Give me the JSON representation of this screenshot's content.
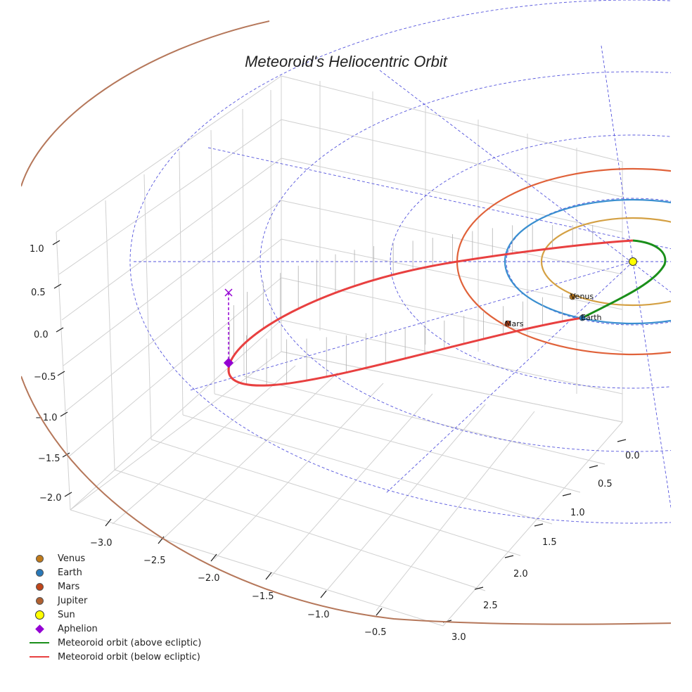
{
  "chart_data": {
    "type": "3d-line",
    "title": "Meteoroid's Heliocentric Orbit",
    "axes": {
      "x_ticks": [
        "−3.0",
        "−2.5",
        "−2.0",
        "−1.5",
        "−1.0",
        "−0.5"
      ],
      "y_ticks": [
        "0.0",
        "0.5",
        "1.0",
        "1.5",
        "2.0",
        "2.5",
        "3.0"
      ],
      "z_ticks": [
        "1.0",
        "0.5",
        "0.0",
        "−0.5",
        "−1.0",
        "−1.5",
        "−2.0"
      ],
      "xlim": [
        -3.3,
        0.2
      ],
      "ylim": [
        -0.2,
        3.2
      ],
      "zlim": [
        -2.2,
        1.2
      ]
    },
    "bodies": [
      {
        "name": "Venus",
        "orbit_radius_au": 0.72,
        "color": "#d4a043",
        "label": "Venus"
      },
      {
        "name": "Earth",
        "orbit_radius_au": 1.0,
        "color": "#3a8fd0",
        "label": "Earth"
      },
      {
        "name": "Mars",
        "orbit_radius_au": 1.52,
        "color": "#e0623a",
        "label": "Mars"
      },
      {
        "name": "Jupiter",
        "orbit_radius_au": 5.2,
        "color": "#b5775a"
      }
    ],
    "meteoroid": {
      "perihelion_au": 0.35,
      "aphelion_au": 3.5,
      "above_color": "#1a8f1a",
      "below_color": "#e84040",
      "aphelion_marker_color": "#9400d3"
    },
    "reference_circles_au": [
      1,
      2,
      3,
      4
    ],
    "reference_color": "#5555dd"
  },
  "legend": [
    {
      "label": "Venus",
      "kind": "dot",
      "color": "#c07a1a"
    },
    {
      "label": "Earth",
      "kind": "dot",
      "color": "#2878b8"
    },
    {
      "label": "Mars",
      "kind": "dot",
      "color": "#c0451a"
    },
    {
      "label": "Jupiter",
      "kind": "dot",
      "color": "#b06030"
    },
    {
      "label": "Sun",
      "kind": "sun",
      "color": "#ffff00"
    },
    {
      "label": "Aphelion",
      "kind": "diamond",
      "color": "#9400d3"
    },
    {
      "label": "Meteoroid orbit (above ecliptic)",
      "kind": "line",
      "color": "#1a8f1a"
    },
    {
      "label": "Meteoroid orbit (below ecliptic)",
      "kind": "line",
      "color": "#e84040"
    }
  ]
}
